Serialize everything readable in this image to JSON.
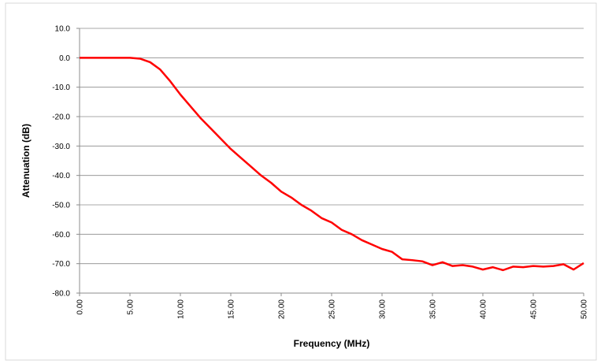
{
  "chart_data": {
    "type": "line",
    "x_label": "Frequency (MHz)",
    "y_label": "Attenuation (dB)",
    "xlim": [
      0,
      50
    ],
    "ylim": [
      -80,
      10
    ],
    "xticks": [
      {
        "value": 0,
        "label": "0.00"
      },
      {
        "value": 5,
        "label": "5.00"
      },
      {
        "value": 10,
        "label": "10.00"
      },
      {
        "value": 15,
        "label": "15.00"
      },
      {
        "value": 20,
        "label": "20.00"
      },
      {
        "value": 25,
        "label": "25.00"
      },
      {
        "value": 30,
        "label": "30.00"
      },
      {
        "value": 35,
        "label": "35.00"
      },
      {
        "value": 40,
        "label": "40.00"
      },
      {
        "value": 45,
        "label": "45.00"
      },
      {
        "value": 50,
        "label": "50.00"
      }
    ],
    "yticks": [
      {
        "value": 10,
        "label": "10.0"
      },
      {
        "value": 0,
        "label": "0.0"
      },
      {
        "value": -10,
        "label": "-10.0"
      },
      {
        "value": -20,
        "label": "-20.0"
      },
      {
        "value": -30,
        "label": "-30.0"
      },
      {
        "value": -40,
        "label": "-40.0"
      },
      {
        "value": -50,
        "label": "-50.0"
      },
      {
        "value": -60,
        "label": "-60.0"
      },
      {
        "value": -70,
        "label": "-70.0"
      },
      {
        "value": -80,
        "label": "-80.0"
      }
    ],
    "grid": true,
    "series": [
      {
        "color": "#ff0000",
        "x": [
          0,
          1,
          2,
          3,
          4,
          5,
          6,
          7,
          8,
          9,
          10,
          11,
          12,
          13,
          14,
          15,
          16,
          17,
          18,
          19,
          20,
          21,
          22,
          23,
          24,
          25,
          26,
          27,
          28,
          29,
          30,
          31,
          32,
          33,
          34,
          35,
          36,
          37,
          38,
          39,
          40,
          41,
          42,
          43,
          44,
          45,
          46,
          47,
          48,
          49,
          50
        ],
        "values": [
          0,
          0,
          0,
          0,
          0,
          0,
          -0.3,
          -1.5,
          -4,
          -8,
          -12.5,
          -16.5,
          -20.5,
          -24,
          -27.5,
          -31,
          -34,
          -37,
          -40,
          -42.5,
          -45.5,
          -47.5,
          -50,
          -52,
          -54.5,
          -56,
          -58.5,
          -60,
          -62,
          -63.5,
          -65,
          -66,
          -68.5,
          -68.8,
          -69.2,
          -70.5,
          -69.5,
          -70.8,
          -70.5,
          -71,
          -72,
          -71.2,
          -72.2,
          -71,
          -71.2,
          -70.8,
          -71,
          -70.8,
          -70.2,
          -72,
          -69.8
        ]
      }
    ]
  }
}
